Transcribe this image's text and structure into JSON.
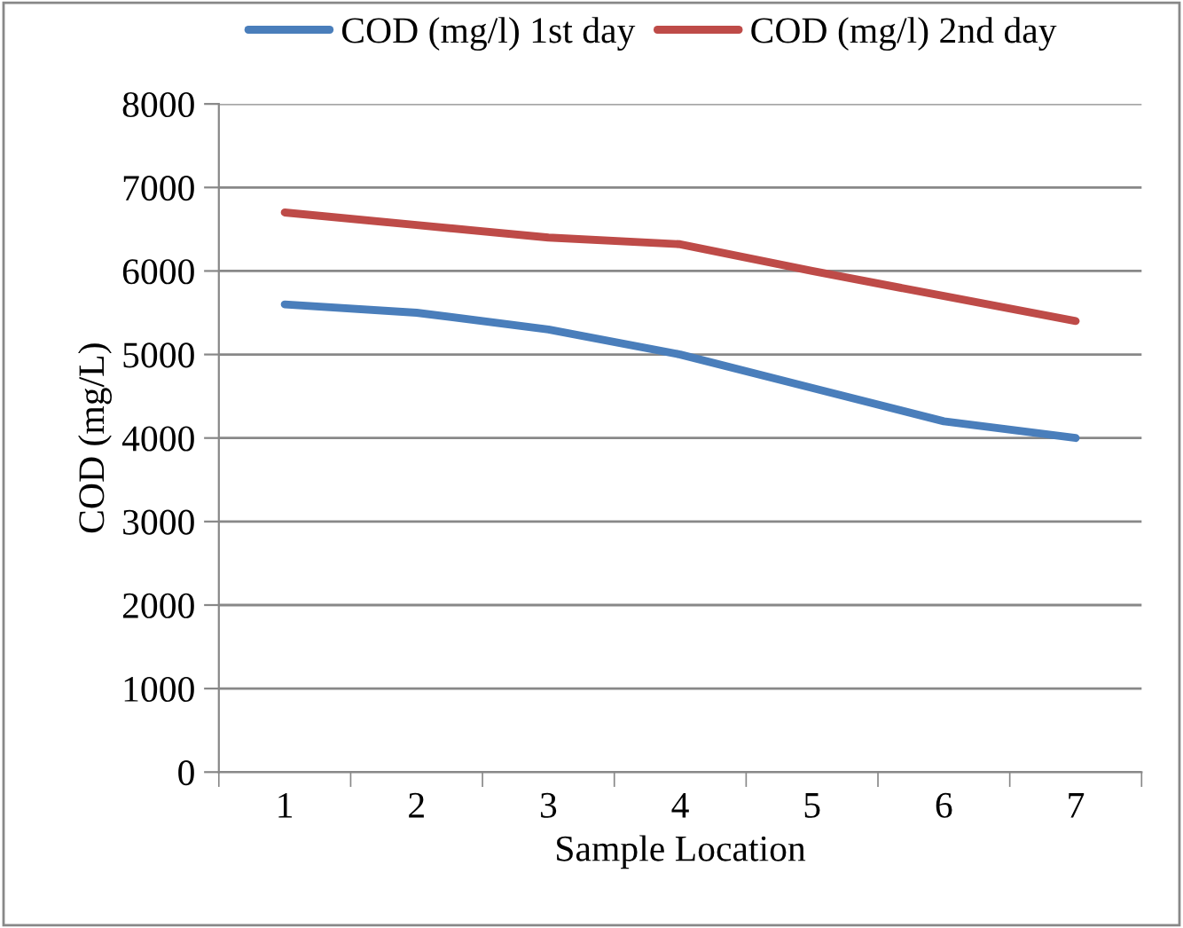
{
  "chart_data": {
    "type": "line",
    "xlabel": "Sample Location",
    "ylabel": "COD (mg/L)",
    "categories": [
      "1",
      "2",
      "3",
      "4",
      "5",
      "6",
      "7"
    ],
    "series": [
      {
        "name": "COD (mg/l) 1st day",
        "color": "#4a7ebb",
        "values": [
          5600,
          5500,
          5300,
          5000,
          4600,
          4200,
          4000
        ]
      },
      {
        "name": "COD (mg/l) 2nd day",
        "color": "#be4b48",
        "values": [
          6700,
          6550,
          6400,
          6320,
          6000,
          5700,
          5400
        ]
      }
    ],
    "ylim": [
      0,
      8000
    ],
    "yticks": [
      0,
      1000,
      2000,
      3000,
      4000,
      5000,
      6000,
      7000,
      8000
    ],
    "grid": "y",
    "legend": "top",
    "marker": "none",
    "line_style": "solid"
  }
}
